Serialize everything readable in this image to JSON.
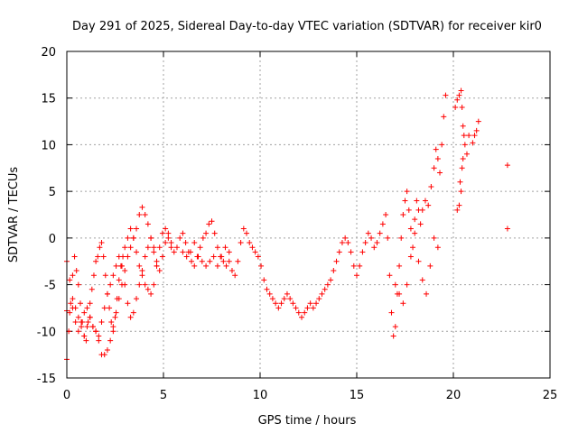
{
  "chart_data": {
    "type": "scatter",
    "title": "Day 291 of 2025, Sidereal Day-to-day VTEC variation (SDTVAR) for receiver kir0",
    "xlabel": "GPS time / hours",
    "ylabel": "SDTVAR / TECUs",
    "xlim": [
      0,
      25
    ],
    "ylim": [
      -15,
      20
    ],
    "xticks": [
      0,
      5,
      10,
      15,
      20,
      25
    ],
    "yticks": [
      -15,
      -10,
      -5,
      0,
      5,
      10,
      15,
      20
    ],
    "grid": true,
    "marker": "+",
    "series": [
      {
        "name": "SDTVAR",
        "color": "#ff0000",
        "tracks": [
          [
            [
              0.0,
              -2.5
            ],
            [
              0.15,
              -4.5
            ],
            [
              0.3,
              -6.5
            ],
            [
              0.45,
              -7.5
            ],
            [
              0.6,
              -8.5
            ],
            [
              0.75,
              -9.5
            ],
            [
              0.9,
              -10.5
            ],
            [
              1.05,
              -9.5
            ],
            [
              1.2,
              -8.5
            ],
            [
              1.35,
              -9.5
            ],
            [
              1.5,
              -10.0
            ],
            [
              1.65,
              -11.0
            ],
            [
              1.8,
              -12.5
            ],
            [
              1.95,
              -12.5
            ],
            [
              2.1,
              -12.0
            ],
            [
              2.25,
              -11.0
            ],
            [
              2.4,
              -9.5
            ],
            [
              2.55,
              -8.0
            ],
            [
              2.7,
              -6.5
            ],
            [
              2.85,
              -5.0
            ],
            [
              3.0,
              -3.5
            ],
            [
              3.15,
              -2.0
            ],
            [
              3.3,
              -1.0
            ],
            [
              3.45,
              0.0
            ],
            [
              3.6,
              1.0
            ],
            [
              3.75,
              2.5
            ],
            [
              3.9,
              3.3
            ],
            [
              4.05,
              2.5
            ],
            [
              4.2,
              1.5
            ],
            [
              4.35,
              0.0
            ],
            [
              4.5,
              -1.5
            ],
            [
              4.65,
              -3.0
            ],
            [
              4.8,
              -3.5
            ],
            [
              4.95,
              -2.0
            ],
            [
              5.1,
              -0.5
            ],
            [
              5.25,
              0.5
            ],
            [
              5.4,
              -0.5
            ],
            [
              5.55,
              -1.5
            ],
            [
              5.7,
              -1.0
            ],
            [
              5.85,
              0.0
            ],
            [
              6.0,
              0.5
            ],
            [
              6.15,
              -0.5
            ],
            [
              6.3,
              -1.5
            ],
            [
              6.45,
              -2.5
            ],
            [
              6.6,
              -3.0
            ],
            [
              6.75,
              -2.0
            ],
            [
              6.9,
              -1.0
            ],
            [
              7.05,
              0.0
            ],
            [
              7.2,
              0.5
            ],
            [
              7.35,
              1.5
            ],
            [
              7.5,
              1.8
            ],
            [
              7.65,
              0.5
            ],
            [
              7.8,
              -1.0
            ],
            [
              7.95,
              -2.0
            ],
            [
              8.1,
              -2.5
            ],
            [
              8.25,
              -3.0
            ],
            [
              8.4,
              -2.5
            ],
            [
              8.55,
              -3.5
            ],
            [
              8.7,
              -4.0
            ],
            [
              8.85,
              -2.5
            ],
            [
              9.0,
              -0.5
            ],
            [
              9.15,
              1.0
            ],
            [
              9.3,
              0.5
            ],
            [
              9.45,
              -0.5
            ],
            [
              9.6,
              -1.0
            ],
            [
              9.75,
              -1.5
            ],
            [
              9.9,
              -2.0
            ],
            [
              10.05,
              -3.0
            ],
            [
              10.2,
              -4.5
            ],
            [
              10.35,
              -5.5
            ],
            [
              10.5,
              -6.0
            ],
            [
              10.65,
              -6.5
            ],
            [
              10.8,
              -7.0
            ],
            [
              10.95,
              -7.5
            ],
            [
              11.1,
              -7.0
            ],
            [
              11.25,
              -6.5
            ],
            [
              11.4,
              -6.0
            ],
            [
              11.55,
              -6.5
            ],
            [
              11.7,
              -7.0
            ],
            [
              11.85,
              -7.5
            ],
            [
              12.0,
              -8.0
            ],
            [
              12.15,
              -8.5
            ],
            [
              12.3,
              -8.0
            ],
            [
              12.45,
              -7.5
            ],
            [
              12.6,
              -7.0
            ],
            [
              12.75,
              -7.5
            ],
            [
              12.9,
              -7.0
            ],
            [
              13.05,
              -6.5
            ],
            [
              13.2,
              -6.0
            ],
            [
              13.35,
              -5.5
            ],
            [
              13.5,
              -5.0
            ],
            [
              13.65,
              -4.5
            ],
            [
              13.8,
              -3.5
            ],
            [
              13.95,
              -2.5
            ],
            [
              14.1,
              -1.5
            ],
            [
              14.25,
              -0.5
            ],
            [
              14.4,
              0.0
            ],
            [
              14.55,
              -0.5
            ],
            [
              14.7,
              -1.5
            ],
            [
              14.85,
              -3.0
            ],
            [
              15.0,
              -4.0
            ],
            [
              15.15,
              -3.0
            ],
            [
              15.3,
              -1.5
            ],
            [
              15.45,
              -0.5
            ],
            [
              15.6,
              0.5
            ],
            [
              15.75,
              0.0
            ],
            [
              15.9,
              -1.0
            ],
            [
              16.05,
              -0.5
            ],
            [
              16.2,
              0.5
            ],
            [
              16.35,
              1.5
            ],
            [
              16.5,
              2.5
            ],
            [
              16.6,
              0.0
            ],
            [
              16.7,
              -4.0
            ],
            [
              16.8,
              -8.0
            ],
            [
              16.9,
              -10.5
            ],
            [
              17.0,
              -9.5
            ],
            [
              17.1,
              -6.0
            ],
            [
              17.2,
              -3.0
            ],
            [
              17.3,
              0.0
            ],
            [
              17.4,
              2.5
            ],
            [
              17.5,
              4.0
            ],
            [
              17.6,
              5.0
            ],
            [
              17.7,
              3.0
            ],
            [
              17.8,
              1.0
            ],
            [
              17.9,
              -1.0
            ],
            [
              18.0,
              2.0
            ],
            [
              18.1,
              4.0
            ],
            [
              18.2,
              3.0
            ],
            [
              18.3,
              1.5
            ],
            [
              18.4,
              3.0
            ],
            [
              18.55,
              4.0
            ],
            [
              18.7,
              3.5
            ],
            [
              18.85,
              5.5
            ],
            [
              19.0,
              7.5
            ],
            [
              19.1,
              9.5
            ],
            [
              19.2,
              8.5
            ],
            [
              19.3,
              7.0
            ],
            [
              19.4,
              10.0
            ],
            [
              19.5,
              13.0
            ],
            [
              19.6,
              15.3
            ]
          ],
          [
            [
              0.0,
              -13.0
            ],
            [
              0.1,
              -10.0
            ],
            [
              0.2,
              -7.0
            ],
            [
              0.3,
              -4.0
            ],
            [
              0.4,
              -2.0
            ],
            [
              0.5,
              -3.5
            ],
            [
              0.6,
              -5.0
            ],
            [
              0.7,
              -7.0
            ],
            [
              0.8,
              -9.0
            ],
            [
              0.9,
              -10.5
            ],
            [
              1.0,
              -11.0
            ],
            [
              1.1,
              -9.0
            ],
            [
              1.2,
              -7.0
            ],
            [
              1.3,
              -5.5
            ],
            [
              1.4,
              -4.0
            ],
            [
              1.5,
              -2.5
            ],
            [
              1.6,
              -2.0
            ],
            [
              1.7,
              -1.0
            ],
            [
              1.8,
              -0.5
            ],
            [
              1.9,
              -2.0
            ],
            [
              2.0,
              -4.0
            ],
            [
              2.1,
              -6.0
            ],
            [
              2.2,
              -7.5
            ],
            [
              2.3,
              -9.0
            ],
            [
              2.4,
              -10.0
            ],
            [
              2.5,
              -8.5
            ],
            [
              2.6,
              -6.5
            ],
            [
              2.7,
              -4.5
            ],
            [
              2.8,
              -3.0
            ],
            [
              2.9,
              -2.0
            ],
            [
              3.0,
              -1.0
            ],
            [
              3.15,
              0.0
            ],
            [
              3.3,
              1.0
            ],
            [
              3.45,
              0.0
            ],
            [
              3.6,
              -1.5
            ],
            [
              3.75,
              -3.0
            ],
            [
              3.9,
              -4.0
            ],
            [
              4.05,
              -5.0
            ],
            [
              4.2,
              -5.5
            ],
            [
              4.35,
              -6.0
            ],
            [
              4.5,
              -5.0
            ],
            [
              4.65,
              -3.0
            ],
            [
              4.8,
              -1.0
            ],
            [
              4.95,
              0.5
            ],
            [
              5.1,
              1.0
            ],
            [
              5.25,
              0.0
            ],
            [
              5.4,
              -1.0
            ]
          ],
          [
            [
              0.0,
              -7.8
            ],
            [
              0.15,
              -8.0
            ],
            [
              0.3,
              -7.5
            ],
            [
              0.45,
              -9.0
            ],
            [
              0.6,
              -10.0
            ],
            [
              0.75,
              -9.0
            ],
            [
              0.9,
              -8.0
            ],
            [
              1.05,
              -7.5
            ],
            [
              1.2,
              -8.5
            ],
            [
              1.35,
              -9.5
            ],
            [
              1.5,
              -10.0
            ],
            [
              1.65,
              -10.5
            ],
            [
              1.8,
              -9.0
            ],
            [
              1.95,
              -7.5
            ],
            [
              2.1,
              -6.0
            ],
            [
              2.25,
              -5.0
            ],
            [
              2.4,
              -4.0
            ],
            [
              2.55,
              -3.0
            ],
            [
              2.7,
              -2.0
            ],
            [
              2.85,
              -3.0
            ],
            [
              3.0,
              -5.0
            ],
            [
              3.15,
              -7.0
            ],
            [
              3.3,
              -8.5
            ],
            [
              3.45,
              -8.0
            ],
            [
              3.6,
              -6.5
            ],
            [
              3.75,
              -5.0
            ],
            [
              3.9,
              -3.5
            ],
            [
              4.05,
              -2.0
            ],
            [
              4.2,
              -1.0
            ],
            [
              4.35,
              0.0
            ],
            [
              4.5,
              -1.0
            ],
            [
              4.65,
              -2.5
            ]
          ],
          [
            [
              6.0,
              -1.5
            ],
            [
              6.2,
              -2.0
            ],
            [
              6.4,
              -1.5
            ],
            [
              6.6,
              -0.5
            ],
            [
              6.8,
              -2.0
            ],
            [
              7.0,
              -2.5
            ],
            [
              7.2,
              -3.0
            ],
            [
              7.4,
              -2.5
            ],
            [
              7.6,
              -2.0
            ],
            [
              7.8,
              -3.0
            ],
            [
              8.0,
              -2.0
            ],
            [
              8.2,
              -1.0
            ],
            [
              8.4,
              -1.5
            ]
          ],
          [
            [
              17.0,
              -5.0
            ],
            [
              17.2,
              -6.0
            ],
            [
              17.4,
              -7.0
            ],
            [
              17.6,
              -5.0
            ],
            [
              17.8,
              -2.0
            ],
            [
              18.0,
              0.5
            ],
            [
              18.2,
              -2.5
            ],
            [
              18.4,
              -4.5
            ],
            [
              18.6,
              -6.0
            ],
            [
              18.8,
              -3.0
            ],
            [
              19.0,
              0.0
            ],
            [
              19.2,
              -1.0
            ]
          ],
          [
            [
              20.1,
              14.0
            ],
            [
              20.2,
              14.8
            ],
            [
              20.3,
              15.3
            ],
            [
              20.4,
              15.8
            ],
            [
              20.45,
              14.0
            ],
            [
              20.5,
              12.0
            ],
            [
              20.55,
              11.0
            ],
            [
              20.6,
              10.0
            ],
            [
              20.7,
              9.0
            ],
            [
              20.8,
              11.0
            ]
          ],
          [
            [
              20.2,
              3.0
            ],
            [
              20.3,
              3.5
            ],
            [
              20.35,
              6.0
            ],
            [
              20.4,
              5.0
            ],
            [
              20.45,
              7.5
            ],
            [
              20.5,
              8.5
            ]
          ],
          [
            [
              21.0,
              10.2
            ],
            [
              21.1,
              11.0
            ],
            [
              21.2,
              11.5
            ],
            [
              21.3,
              12.5
            ]
          ],
          [
            [
              22.8,
              7.8
            ],
            [
              22.8,
              1.0
            ]
          ]
        ]
      }
    ]
  }
}
